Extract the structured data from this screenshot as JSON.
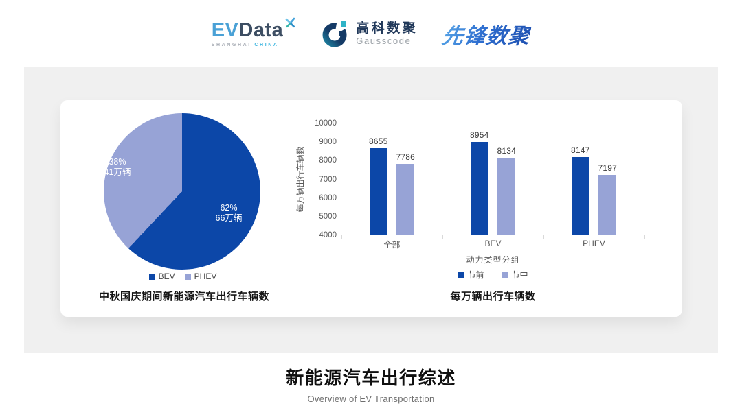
{
  "header": {
    "evdata": {
      "ev": "EV",
      "data": "Data",
      "sub_left": "SHANGHAI",
      "sub_right": "CHINA"
    },
    "gausscode": {
      "cn": "高科数聚",
      "en": "Gausscode"
    },
    "xianfeng": {
      "text": "先锋数聚"
    }
  },
  "colors": {
    "series_dark_blue": "#0c47a8",
    "series_periwinkle": "#97a3d6",
    "panel_background": "#f0f0f0",
    "axis_text": "#595959"
  },
  "chart_data": [
    {
      "type": "pie",
      "title": "中秋国庆期间新能源汽车出行车辆数",
      "slices": [
        {
          "label": "BEV",
          "percent": 62,
          "amount_text": "66万辆",
          "color": "#0c47a8"
        },
        {
          "label": "PHEV",
          "percent": 38,
          "amount_text": "41万辆",
          "color": "#97a3d6"
        }
      ],
      "start_angle_deg": 0,
      "direction": "clockwise",
      "legend_position": "bottom"
    },
    {
      "type": "bar",
      "title": "每万辆出行车辆数",
      "categories": [
        "全部",
        "BEV",
        "PHEV"
      ],
      "series": [
        {
          "name": "节前",
          "values": [
            8655,
            8954,
            8147
          ],
          "color": "#0c47a8"
        },
        {
          "name": "节中",
          "values": [
            7786,
            8134,
            7197
          ],
          "color": "#97a3d6"
        }
      ],
      "xlabel": "动力类型分组",
      "ylabel": "每万辆出行车辆数",
      "ylim": [
        4000,
        10000
      ],
      "ytick_step": 1000,
      "grid": false,
      "legend_position": "bottom"
    }
  ],
  "footer": {
    "title": "新能源汽车出行综述",
    "subtitle": "Overview of EV Transportation"
  }
}
